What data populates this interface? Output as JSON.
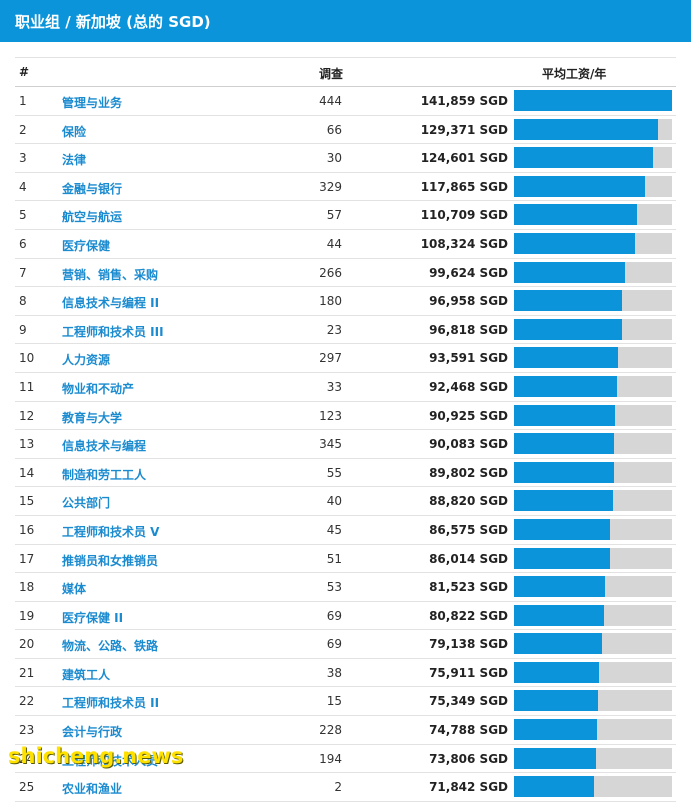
{
  "header": {
    "title": "职业组 / 新加坡 (总的 SGD)"
  },
  "columns": {
    "rank": "#",
    "count": "调查",
    "salary": "平均工资/年"
  },
  "colors": {
    "accent": "#0b94da",
    "track": "#d6d6d6",
    "link": "#1b8bd0"
  },
  "chart_data": {
    "type": "bar",
    "orientation": "horizontal",
    "xlim": [
      0,
      141859
    ],
    "rows": [
      {
        "rank": "1",
        "name": "管理与业务",
        "count": "444",
        "salary_label": "141,859 SGD",
        "value": 141859
      },
      {
        "rank": "2",
        "name": "保险",
        "count": "66",
        "salary_label": "129,371 SGD",
        "value": 129371
      },
      {
        "rank": "3",
        "name": "法律",
        "count": "30",
        "salary_label": "124,601 SGD",
        "value": 124601
      },
      {
        "rank": "4",
        "name": "金融与银行",
        "count": "329",
        "salary_label": "117,865 SGD",
        "value": 117865
      },
      {
        "rank": "5",
        "name": "航空与航运",
        "count": "57",
        "salary_label": "110,709 SGD",
        "value": 110709
      },
      {
        "rank": "6",
        "name": "医疗保健",
        "count": "44",
        "salary_label": "108,324 SGD",
        "value": 108324
      },
      {
        "rank": "7",
        "name": "营销、销售、采购",
        "count": "266",
        "salary_label": "99,624 SGD",
        "value": 99624
      },
      {
        "rank": "8",
        "name": "信息技术与编程 II",
        "count": "180",
        "salary_label": "96,958 SGD",
        "value": 96958
      },
      {
        "rank": "9",
        "name": "工程师和技术员 III",
        "count": "23",
        "salary_label": "96,818 SGD",
        "value": 96818
      },
      {
        "rank": "10",
        "name": "人力资源",
        "count": "297",
        "salary_label": "93,591 SGD",
        "value": 93591
      },
      {
        "rank": "11",
        "name": "物业和不动产",
        "count": "33",
        "salary_label": "92,468 SGD",
        "value": 92468
      },
      {
        "rank": "12",
        "name": "教育与大学",
        "count": "123",
        "salary_label": "90,925 SGD",
        "value": 90925
      },
      {
        "rank": "13",
        "name": "信息技术与编程",
        "count": "345",
        "salary_label": "90,083 SGD",
        "value": 90083
      },
      {
        "rank": "14",
        "name": "制造和劳工工人",
        "count": "55",
        "salary_label": "89,802 SGD",
        "value": 89802
      },
      {
        "rank": "15",
        "name": "公共部门",
        "count": "40",
        "salary_label": "88,820 SGD",
        "value": 88820
      },
      {
        "rank": "16",
        "name": "工程师和技术员 V",
        "count": "45",
        "salary_label": "86,575 SGD",
        "value": 86575
      },
      {
        "rank": "17",
        "name": "推销员和女推销员",
        "count": "51",
        "salary_label": "86,014 SGD",
        "value": 86014
      },
      {
        "rank": "18",
        "name": "媒体",
        "count": "53",
        "salary_label": "81,523 SGD",
        "value": 81523
      },
      {
        "rank": "19",
        "name": "医疗保健 II",
        "count": "69",
        "salary_label": "80,822 SGD",
        "value": 80822
      },
      {
        "rank": "20",
        "name": "物流、公路、铁路",
        "count": "69",
        "salary_label": "79,138 SGD",
        "value": 79138
      },
      {
        "rank": "21",
        "name": "建筑工人",
        "count": "38",
        "salary_label": "75,911 SGD",
        "value": 75911
      },
      {
        "rank": "22",
        "name": "工程师和技术员 II",
        "count": "15",
        "salary_label": "75,349 SGD",
        "value": 75349
      },
      {
        "rank": "23",
        "name": "会计与行政",
        "count": "228",
        "salary_label": "74,788 SGD",
        "value": 74788
      },
      {
        "rank": "24",
        "name": "工程师和技术人员",
        "count": "194",
        "salary_label": "73,806 SGD",
        "value": 73806
      },
      {
        "rank": "25",
        "name": "农业和渔业",
        "count": "2",
        "salary_label": "71,842 SGD",
        "value": 71842
      }
    ]
  },
  "watermark": "shicheng.news"
}
